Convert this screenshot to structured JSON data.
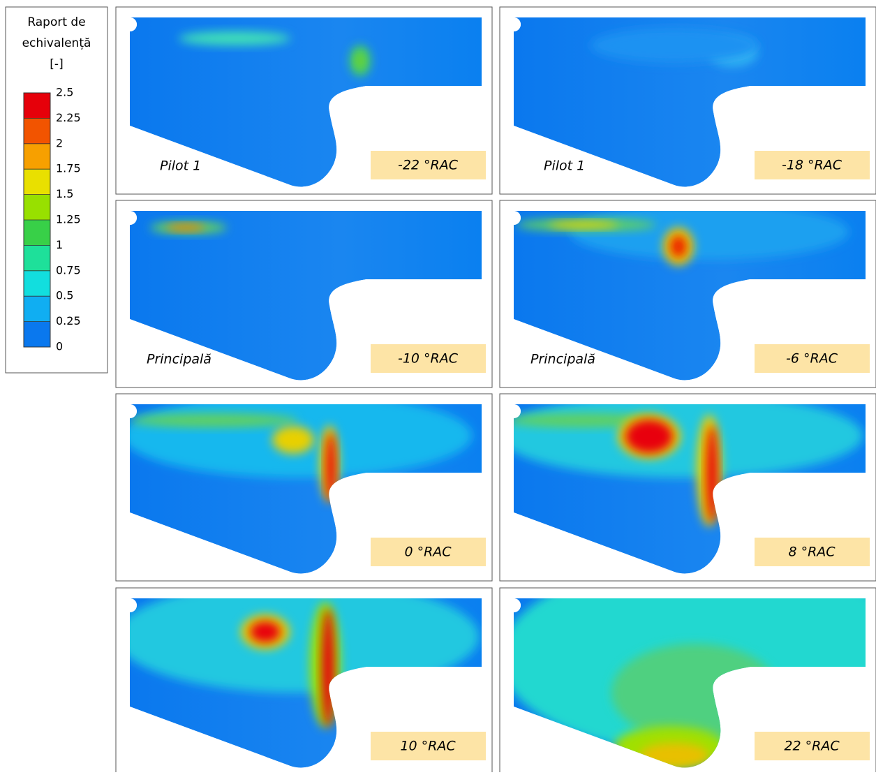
{
  "colorbar": {
    "title": [
      "Raport de",
      "echivalență",
      "[-]"
    ],
    "ticks": [
      2.5,
      2.25,
      2,
      1.75,
      1.5,
      1.25,
      1,
      0.75,
      0.5,
      0.25,
      0
    ]
  },
  "panels": [
    {
      "mode": "Pilot 1",
      "angle": "-22 °RAC"
    },
    {
      "mode": "Pilot 1",
      "angle": "-18 °RAC"
    },
    {
      "mode": "Principală",
      "angle": "-10 °RAC"
    },
    {
      "mode": "Principală",
      "angle": "-6 °RAC"
    },
    {
      "angle": "0 °RAC"
    },
    {
      "angle": "8 °RAC"
    },
    {
      "angle": "10 °RAC"
    },
    {
      "angle": "22 °RAC"
    }
  ]
}
